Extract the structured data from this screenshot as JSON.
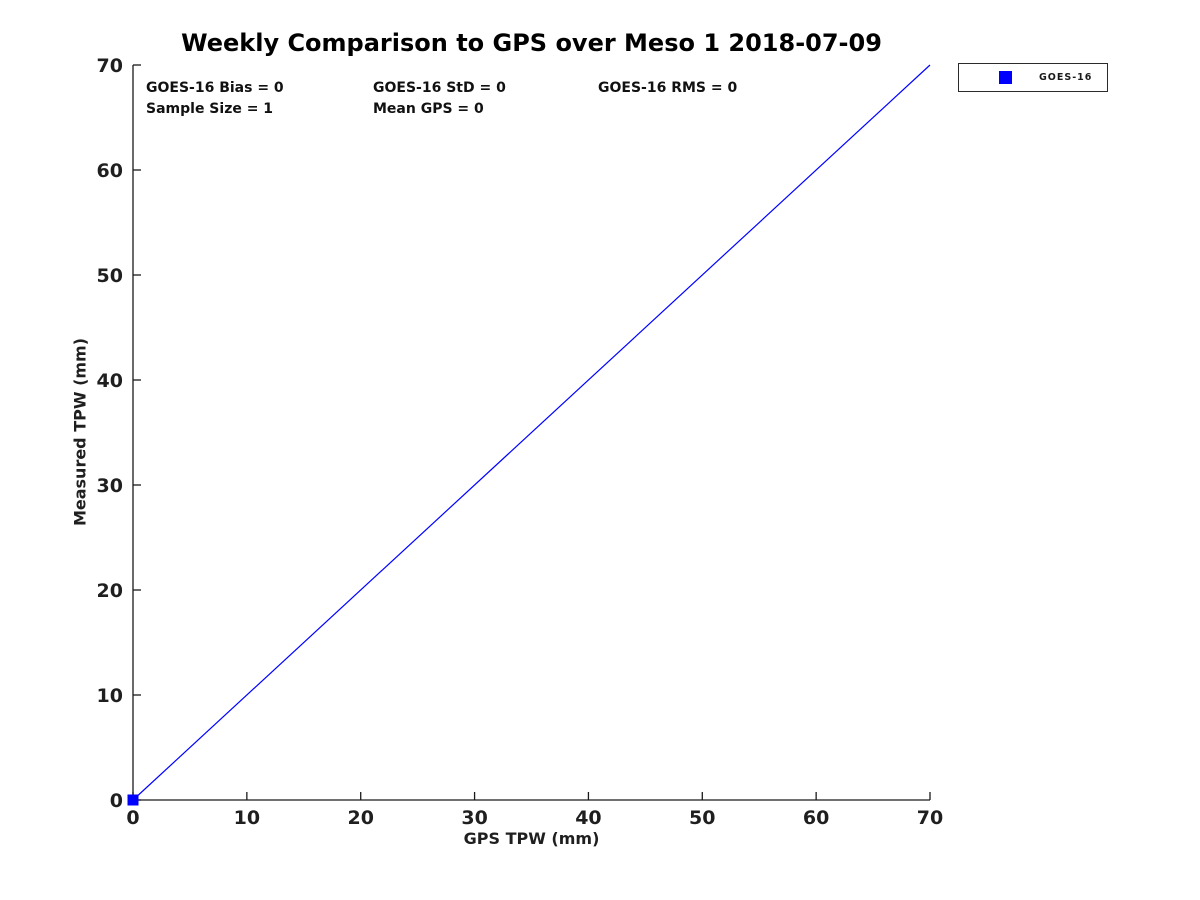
{
  "figure": {
    "background": "#ffffff",
    "accent_blue": "#0000ff",
    "axis_color": "#1a1a1a"
  },
  "annotations": {
    "row1": [
      "GOES-16 Bias = 0",
      "GOES-16 StD = 0",
      "GOES-16 RMS = 0"
    ],
    "row2": [
      "Sample Size = 1",
      "Mean GPS = 0"
    ]
  },
  "chart_data": {
    "type": "scatter",
    "title": "Weekly Comparison to GPS over Meso 1 2018-07-09",
    "xlabel": "GPS TPW (mm)",
    "ylabel": "Measured TPW (mm)",
    "xlim": [
      0,
      70
    ],
    "ylim": [
      0,
      70
    ],
    "xticks": [
      0,
      10,
      20,
      30,
      40,
      50,
      60,
      70
    ],
    "yticks": [
      0,
      10,
      20,
      30,
      40,
      50,
      60,
      70
    ],
    "grid": false,
    "legend_position": "outside-top-right",
    "series": [
      {
        "name": "GOES-16",
        "type": "scatter",
        "marker": "square",
        "color": "#0000ff",
        "points": [
          [
            0,
            0
          ]
        ]
      }
    ],
    "reference_line": {
      "from": [
        0,
        0
      ],
      "to": [
        70,
        70
      ],
      "color": "#0000ff",
      "style": "solid"
    },
    "stats": {
      "goes16_bias": 0,
      "goes16_std": 0,
      "goes16_rms": 0,
      "sample_size": 1,
      "mean_gps": 0
    }
  }
}
